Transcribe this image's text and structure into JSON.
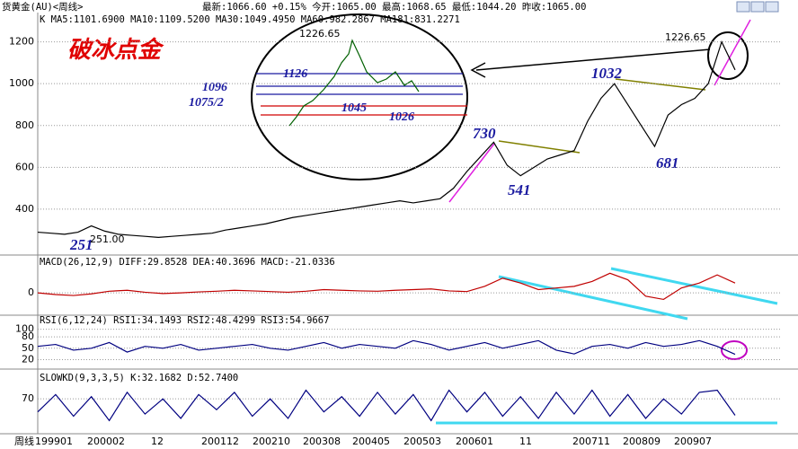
{
  "header": {
    "symbol": "货黄金(AU)<周线>",
    "quote": "最新:1066.60 +0.15%  今开:1065.00  最高:1068.65  最低:1044.20  昨收:1065.00"
  },
  "ma_line": "K  MA5:1101.6900  MA10:1109.5200  MA30:1049.4950  MA60:982.2867  MA181:831.2271",
  "annotations": {
    "title": "破冰点金",
    "peak_zoom": "1226.65",
    "peak": "1226.65",
    "l1126": "1126",
    "l1096": "1096",
    "l1075": "1075/2",
    "l1045": "1045",
    "l1026": "1026",
    "l730": "730",
    "l1032": "1032",
    "l541": "541",
    "l681": "681",
    "l251": "251",
    "l25100": "251.00"
  },
  "x_axis": {
    "name": "周线",
    "labels": [
      "199901",
      "200002",
      "12",
      "200112",
      "200210",
      "200308",
      "200405",
      "200503",
      "200601",
      "11",
      "200711",
      "200809",
      "200907"
    ]
  },
  "chart_data": [
    {
      "type": "line",
      "color": "#000000",
      "ylim": [
        185,
        1340
      ],
      "yticks": [
        400,
        600,
        800,
        1000,
        1200
      ],
      "values": [
        290,
        285,
        280,
        290,
        320,
        295,
        280,
        275,
        270,
        265,
        270,
        275,
        280,
        285,
        300,
        310,
        320,
        330,
        345,
        360,
        370,
        380,
        390,
        400,
        410,
        420,
        430,
        440,
        430,
        440,
        450,
        500,
        580,
        650,
        720,
        610,
        560,
        600,
        640,
        660,
        680,
        820,
        930,
        1000,
        900,
        800,
        700,
        850,
        900,
        930,
        1000,
        1200,
        1066
      ]
    },
    {
      "type": "line",
      "title": "MACD(26,12,9)  DIFF:29.8528  DEA:40.3696  MACD:-21.0336",
      "color": "#c00000",
      "ylim": [
        -60,
        80
      ],
      "yticks": [
        0
      ],
      "values": [
        0,
        -5,
        -8,
        -3,
        5,
        8,
        2,
        -2,
        0,
        3,
        5,
        8,
        6,
        4,
        2,
        5,
        10,
        8,
        6,
        5,
        8,
        10,
        12,
        6,
        4,
        20,
        45,
        30,
        10,
        15,
        20,
        35,
        60,
        40,
        -10,
        -20,
        15,
        30,
        55,
        30
      ]
    },
    {
      "type": "line",
      "title": "RSI(6,12,24)  RSI1:34.1493  RSI2:48.4299  RSI3:54.9667",
      "color": "#000080",
      "ylim": [
        0,
        125
      ],
      "yticks": [
        20,
        50,
        80,
        100
      ],
      "values": [
        55,
        60,
        45,
        50,
        65,
        40,
        55,
        50,
        60,
        45,
        50,
        55,
        60,
        50,
        45,
        55,
        65,
        50,
        60,
        55,
        50,
        70,
        60,
        45,
        55,
        65,
        50,
        60,
        70,
        45,
        35,
        55,
        60,
        50,
        65,
        55,
        60,
        70,
        55,
        34
      ]
    },
    {
      "type": "line",
      "title": "SLOWKD(9,3,3,5)  K:32.1682  D:52.7400",
      "color": "#000080",
      "ylim": [
        0,
        120
      ],
      "yticks": [
        70
      ],
      "values": [
        40,
        80,
        30,
        75,
        20,
        85,
        35,
        70,
        25,
        80,
        45,
        85,
        30,
        70,
        25,
        90,
        40,
        75,
        30,
        85,
        35,
        80,
        20,
        90,
        40,
        85,
        30,
        75,
        25,
        85,
        35,
        90,
        30,
        80,
        25,
        70,
        35,
        85,
        90,
        32
      ]
    }
  ]
}
